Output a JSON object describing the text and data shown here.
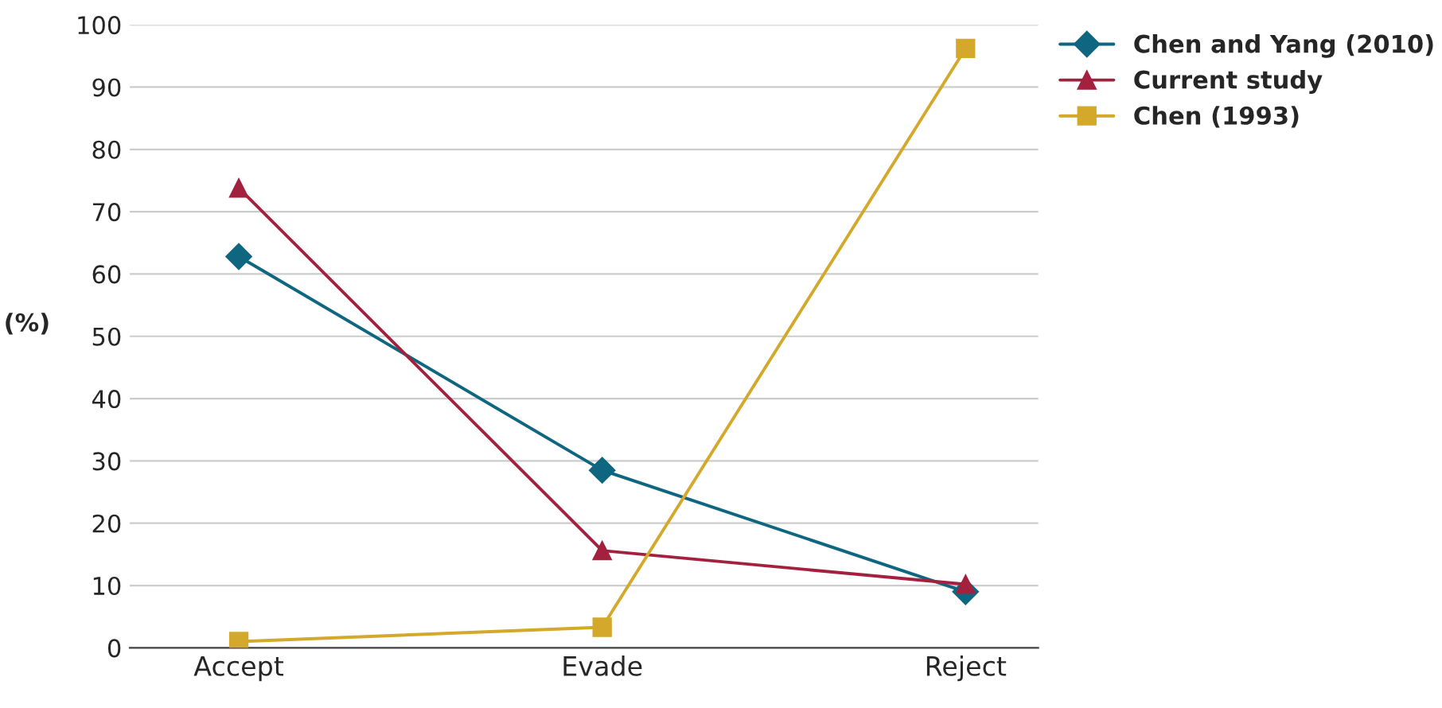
{
  "chart_data": {
    "type": "line",
    "ylabel": "(%)",
    "categories": [
      "Accept",
      "Evade",
      "Reject"
    ],
    "series": [
      {
        "name": "Chen and Yang (2010)",
        "color": "#0f6680",
        "marker": "diamond",
        "values": [
          62.8,
          28.5,
          9
        ]
      },
      {
        "name": "Current study",
        "color": "#a3203f",
        "marker": "triangle",
        "values": [
          73.8,
          15.6,
          10.2
        ]
      },
      {
        "name": "Chen (1993)",
        "color": "#d4a82a",
        "marker": "square",
        "values": [
          1,
          3.3,
          96.2
        ]
      }
    ],
    "ylim": [
      0,
      100
    ],
    "yticks": [
      0,
      10,
      20,
      30,
      40,
      50,
      60,
      70,
      80,
      90,
      100
    ],
    "grid": "y",
    "legend": "top right"
  }
}
